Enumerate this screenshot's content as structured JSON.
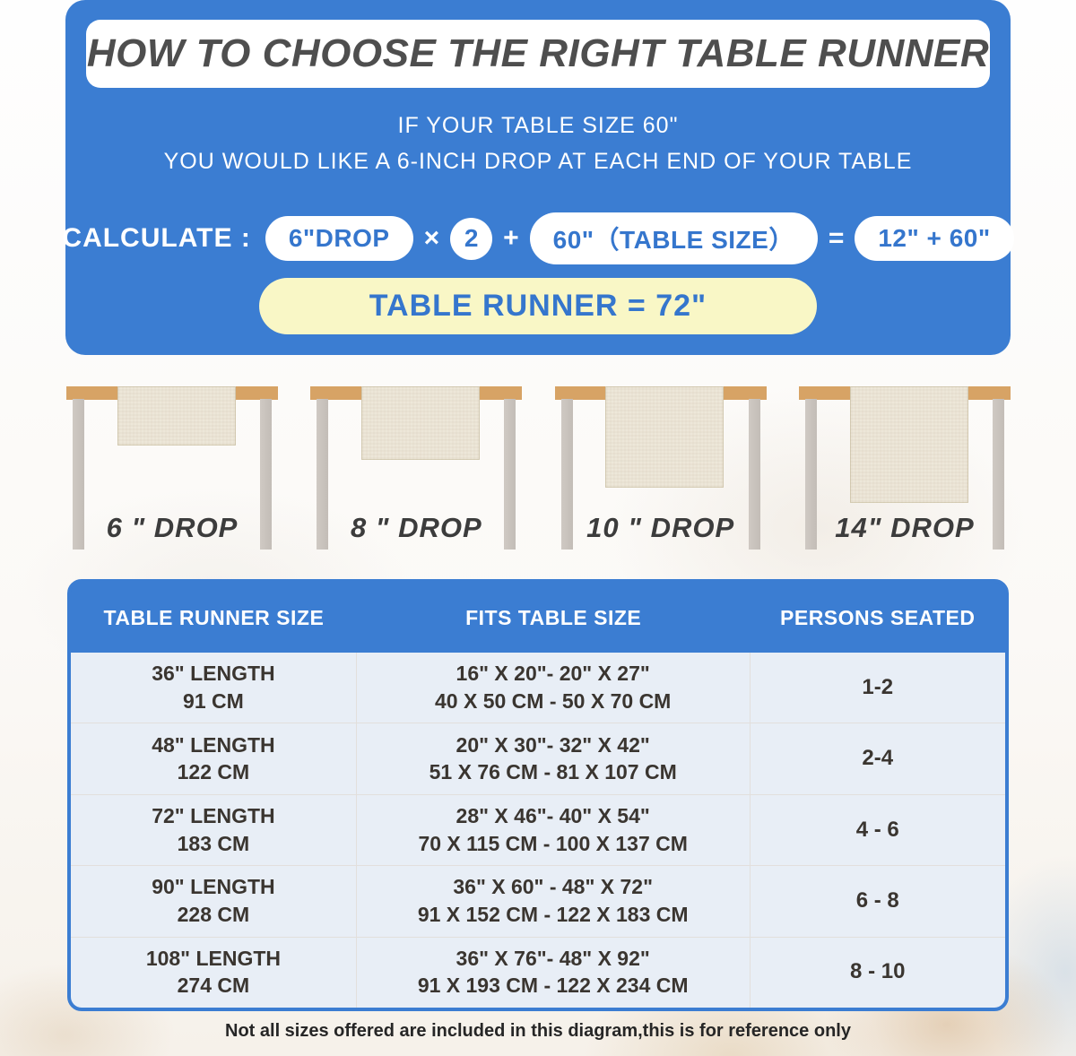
{
  "banner": {
    "title": "HOW TO CHOOSE THE RIGHT TABLE RUNNER",
    "subtitle_line1": "IF YOUR TABLE SIZE 60\"",
    "subtitle_line2": "YOU WOULD LIKE A 6-INCH DROP AT EACH END OF YOUR TABLE",
    "calc": {
      "label": "CALCULATE :",
      "drop_pill": "6\"DROP",
      "times_sign": "×",
      "multiplier": "2",
      "plus_sign": "+",
      "table_size_pill": "60\"（TABLE SIZE）",
      "equals_sign": "=",
      "result_pill": "12\" + 60\"",
      "final_result": "TABLE RUNNER = 72\""
    }
  },
  "drops": [
    {
      "label": "6 \" DROP"
    },
    {
      "label": "8 \" DROP"
    },
    {
      "label": "10 \" DROP"
    },
    {
      "label": "14\" DROP"
    }
  ],
  "size_table": {
    "headers": [
      "TABLE RUNNER SIZE",
      "FITS TABLE SIZE",
      "PERSONS SEATED"
    ],
    "rows": [
      {
        "runner_in": "36\" LENGTH",
        "runner_cm": "91 CM",
        "fits_in": "16\" X 20\"- 20\" X 27\"",
        "fits_cm": "40 X 50 CM - 50 X 70 CM",
        "persons": "1-2"
      },
      {
        "runner_in": "48\" LENGTH",
        "runner_cm": "122 CM",
        "fits_in": "20\" X 30\"- 32\" X 42\"",
        "fits_cm": "51 X 76 CM - 81 X 107 CM",
        "persons": "2-4"
      },
      {
        "runner_in": "72\" LENGTH",
        "runner_cm": "183 CM",
        "fits_in": "28\" X 46\"- 40\" X 54\"",
        "fits_cm": "70 X 115 CM - 100 X 137 CM",
        "persons": "4 - 6"
      },
      {
        "runner_in": "90\" LENGTH",
        "runner_cm": "228 CM",
        "fits_in": "36\" X 60\" - 48\" X 72\"",
        "fits_cm": "91 X 152 CM - 122 X 183 CM",
        "persons": "6 - 8"
      },
      {
        "runner_in": "108\" LENGTH",
        "runner_cm": "274 CM",
        "fits_in": "36\" X 76\"- 48\" X 92\"",
        "fits_cm": "91 X 193 CM - 122 X 234 CM",
        "persons": "8 - 10"
      }
    ]
  },
  "footer_note": "Not all sizes offered are included in this diagram,this is for reference only",
  "colors": {
    "accent_blue": "#3b7dd2",
    "pill_text_blue": "#3576cd",
    "highlight_yellow": "#f9f7c6",
    "title_gray": "#4e4e4e",
    "wood_tan": "#d7a365",
    "leg_gray": "#c9c3bd",
    "runner_cream": "#ede7d9",
    "table_text": "#3a3530"
  }
}
